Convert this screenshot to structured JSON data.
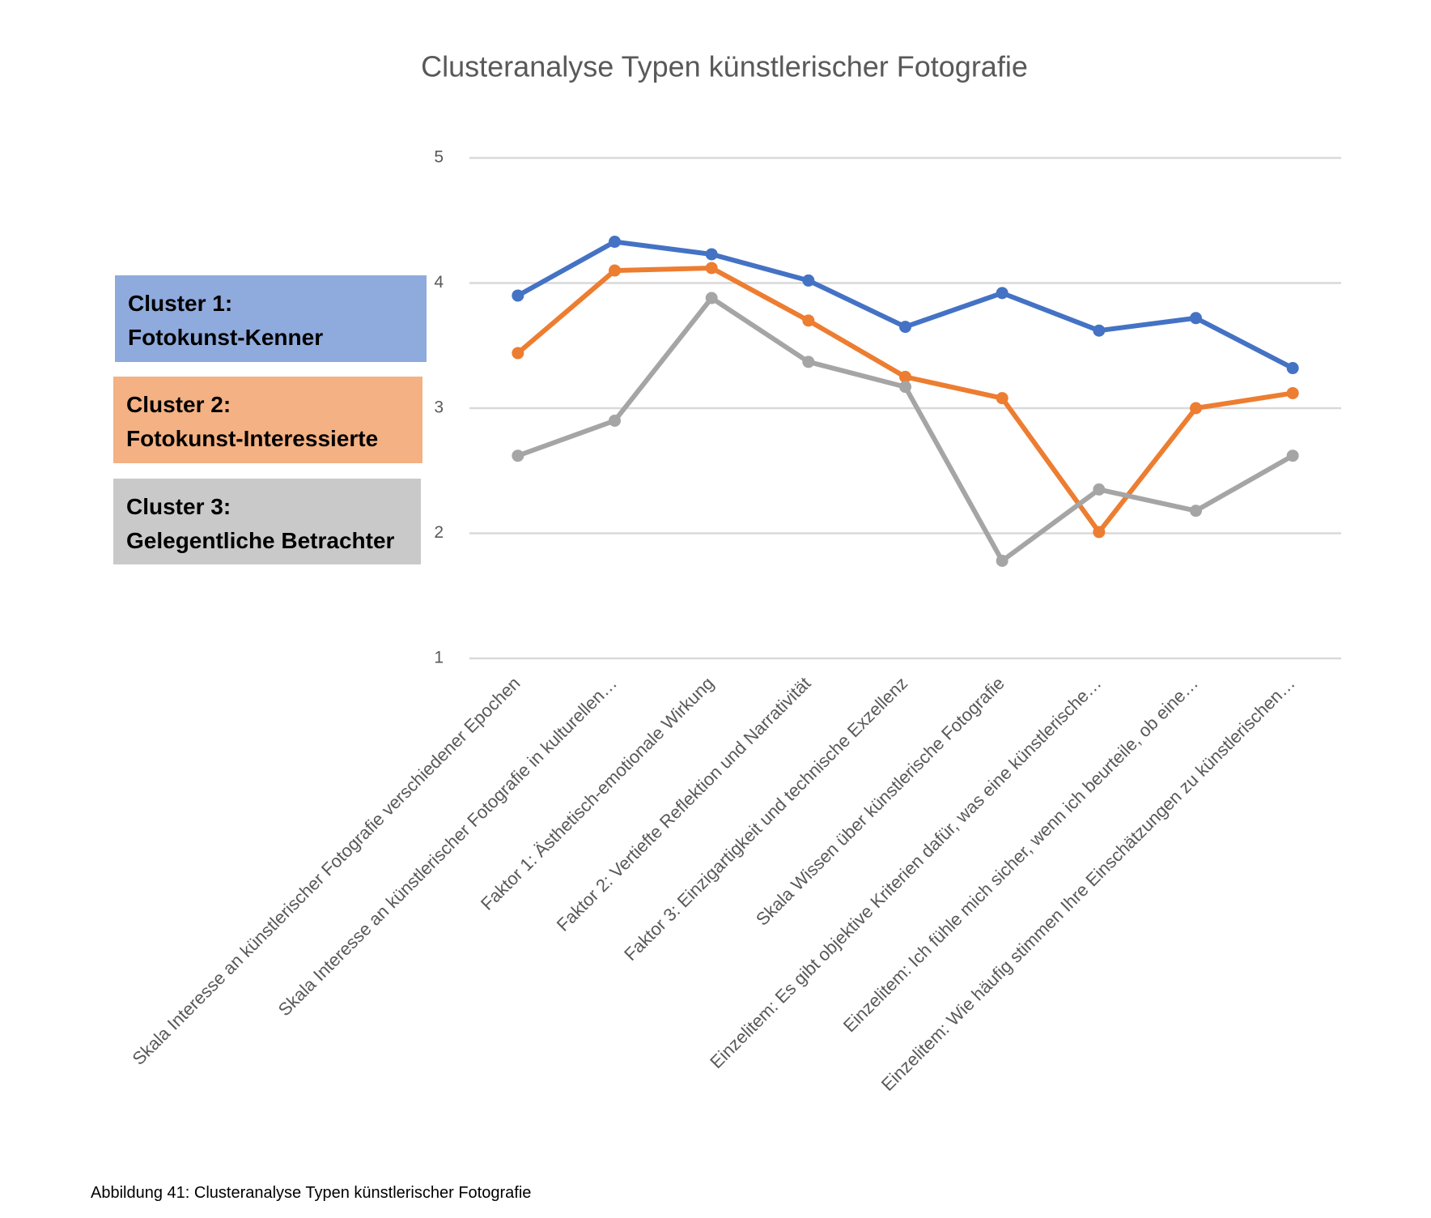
{
  "chart_data": {
    "type": "line",
    "title": "Clusteranalyse Typen künstlerischer Fotografie",
    "caption": "Abbildung 41: Clusteranalyse Typen künstlerischer Fotografie",
    "categories": [
      "Skala Interesse an künstlerischer Fotografie verschiedener Epochen",
      "Skala Interesse an künstlerischer Fotografie in kulturellen…",
      "Faktor 1: Ästhetisch-emotionale Wirkung",
      "Faktor 2: Vertiefte Reflektion und Narrativität",
      "Faktor 3: Einzigartigkeit und technische Exzellenz",
      "Skala Wissen über künstlerische Fotografie",
      "Einzelitem: Es gibt objektive Kriterien dafür, was eine künstlerische…",
      "Einzelitem: Ich fühle mich sicher, wenn ich beurteile, ob eine…",
      "Einzelitem: Wie häufig stimmen Ihre Einschätzungen zu künstlerischen…"
    ],
    "series": [
      {
        "name": "Cluster 1:\nFotokunst-Kenner",
        "color": "#4472c4",
        "values": [
          3.9,
          4.33,
          4.23,
          4.02,
          3.65,
          3.92,
          3.62,
          3.72,
          3.32
        ]
      },
      {
        "name": "Cluster 2:\nFotokunst-Interessierte",
        "color": "#ed7d31",
        "values": [
          3.44,
          4.1,
          4.12,
          3.7,
          3.25,
          3.08,
          2.01,
          3.0,
          3.12
        ]
      },
      {
        "name": "Cluster 3:\nGelegentliche Betrachter",
        "color": "#a5a5a5",
        "values": [
          2.62,
          2.9,
          3.88,
          3.37,
          3.17,
          1.78,
          2.35,
          2.18,
          2.62
        ]
      }
    ],
    "ylim": [
      1,
      5
    ],
    "yticks": [
      1,
      2,
      3,
      4,
      5
    ],
    "grid": true
  }
}
